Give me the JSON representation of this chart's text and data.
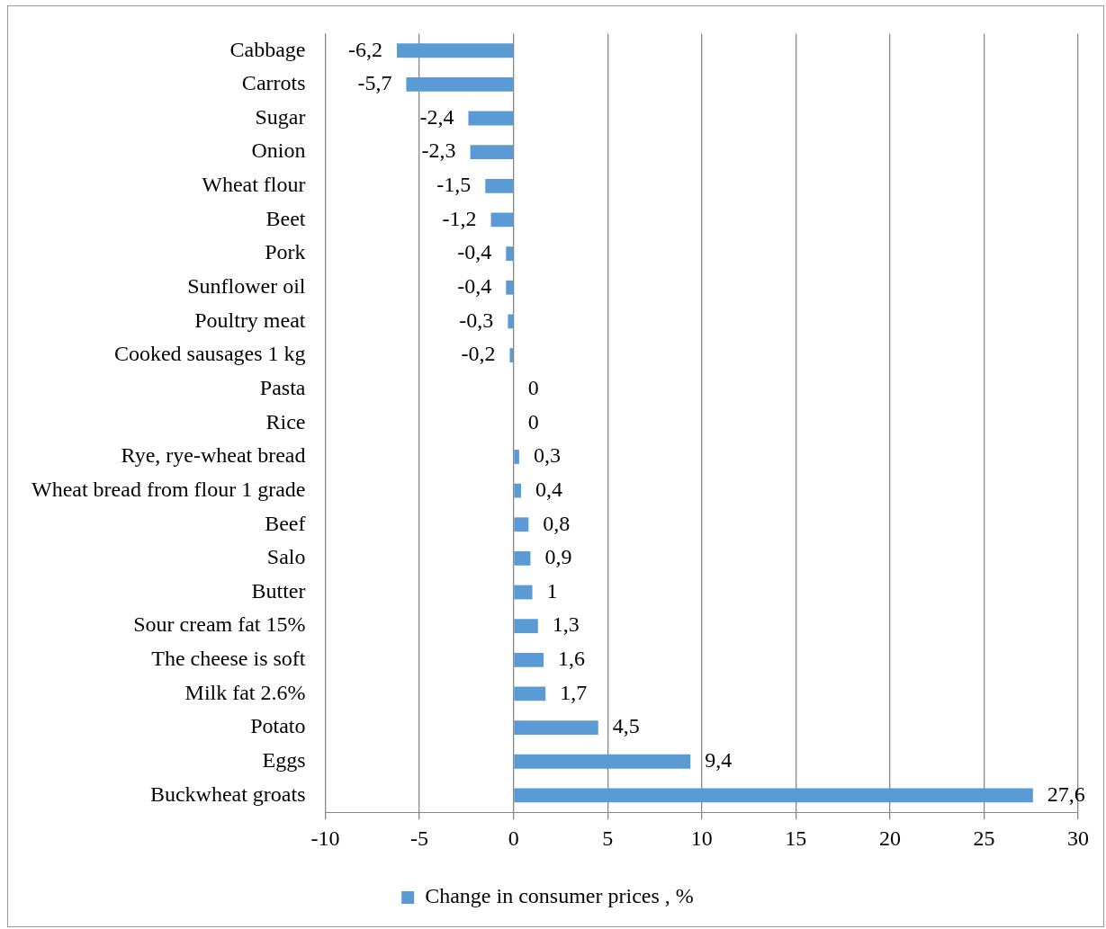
{
  "chart_data": {
    "type": "bar",
    "orientation": "horizontal",
    "categories": [
      "Cabbage",
      "Carrots",
      "Sugar",
      "Onion",
      "Wheat flour",
      "Beet",
      "Pork",
      "Sunflower oil",
      "Poultry meat",
      "Cooked sausages 1 kg",
      "Pasta",
      "Rice",
      "Rye, rye-wheat bread",
      "Wheat bread from flour 1 grade",
      "Beef",
      "Salo",
      "Butter",
      "Sour cream fat 15%",
      "The cheese is soft",
      "Milk fat 2.6%",
      "Potato",
      "Eggs",
      "Buckwheat groats"
    ],
    "series": [
      {
        "name": "Change in consumer prices , %",
        "color": "#5b9bd5",
        "values": [
          -6.2,
          -5.7,
          -2.4,
          -2.3,
          -1.5,
          -1.2,
          -0.4,
          -0.4,
          -0.3,
          -0.2,
          0,
          0,
          0.3,
          0.4,
          0.8,
          0.9,
          1,
          1.3,
          1.6,
          1.7,
          4.5,
          9.4,
          27.6
        ],
        "value_labels": [
          "-6,2",
          "-5,7",
          "-2,4",
          "-2,3",
          "-1,5",
          "-1,2",
          "-0,4",
          "-0,4",
          "-0,3",
          "-0,2",
          "0",
          "0",
          "0,3",
          "0,4",
          "0,8",
          "0,9",
          "1",
          "1,3",
          "1,6",
          "1,7",
          "4,5",
          "9,4",
          "27,6"
        ]
      }
    ],
    "xlim": [
      -10,
      30
    ],
    "xticks": [
      -10,
      -5,
      0,
      5,
      10,
      15,
      20,
      25,
      30
    ],
    "grid": "x",
    "legend": "bottom"
  }
}
